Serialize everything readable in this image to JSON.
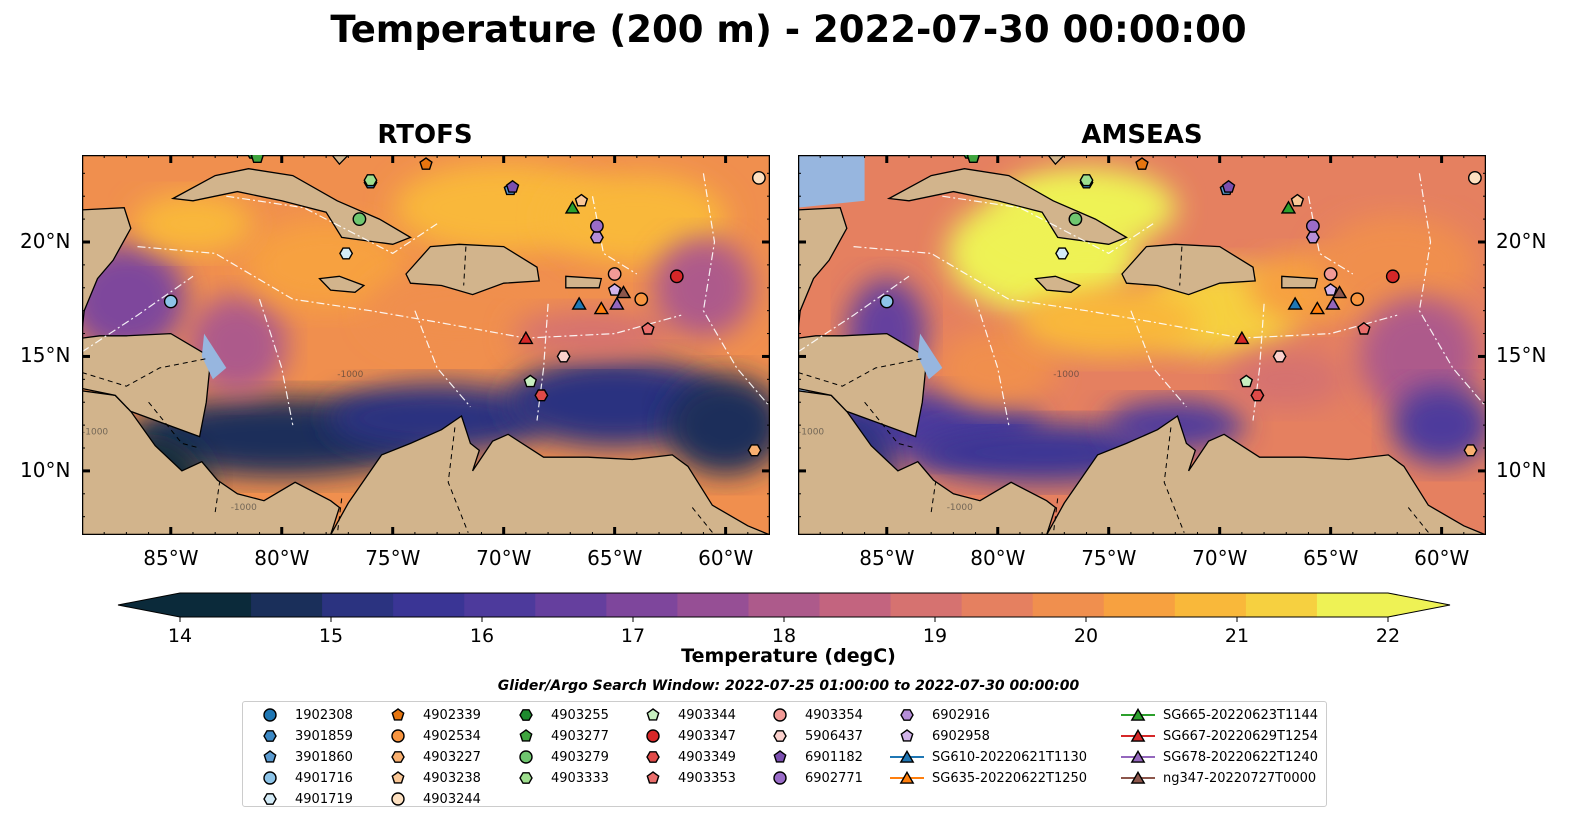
{
  "title": "Temperature (200 m) - 2022-07-30 00:00:00",
  "panels": [
    {
      "title": "RTOFS",
      "palette": "warm"
    },
    {
      "title": "AMSEAS",
      "palette": "hot"
    }
  ],
  "axes": {
    "lon_ticks": [
      "85°W",
      "80°W",
      "75°W",
      "70°W",
      "65°W",
      "60°W"
    ],
    "lon_values": [
      -85,
      -80,
      -75,
      -70,
      -65,
      -60
    ],
    "lat_ticks": [
      "20°N",
      "15°N",
      "10°N"
    ],
    "lat_values": [
      20,
      15,
      10
    ],
    "lon_range": [
      -89,
      -58
    ],
    "lat_range": [
      7.2,
      23.8
    ]
  },
  "contour_label": "-1000",
  "colorbar": {
    "label": "Temperature (degC)",
    "ticks": [
      "14",
      "15",
      "16",
      "17",
      "18",
      "19",
      "20",
      "21",
      "22"
    ],
    "tick_values": [
      14,
      15,
      16,
      17,
      18,
      19,
      20,
      21,
      22
    ],
    "range": [
      14,
      22
    ],
    "extend": "both",
    "colors": [
      "#0b2a3a",
      "#1a2f5a",
      "#2b3380",
      "#3a3595",
      "#4d3a9c",
      "#653f9e",
      "#7e469c",
      "#964f95",
      "#ad5a8b",
      "#c3647f",
      "#d67270",
      "#e58060",
      "#f08f4e",
      "#f7a140",
      "#f9b83a",
      "#f6d040",
      "#eef255"
    ]
  },
  "search_window": "Glider/Argo Search Window: 2022-07-25 01:00:00 to 2022-07-30 00:00:00",
  "legend": [
    {
      "label": "1902308",
      "marker": "circle",
      "color": "#1f77b4"
    },
    {
      "label": "3901859",
      "marker": "hexagon",
      "color": "#3b88c4"
    },
    {
      "label": "3901860",
      "marker": "pentagon",
      "color": "#5b9bd0"
    },
    {
      "label": "4901716",
      "marker": "circle",
      "color": "#8dc4e8"
    },
    {
      "label": "4901719",
      "marker": "hexagon",
      "color": "#d4ecf8"
    },
    {
      "label": "4902339",
      "marker": "pentagon",
      "color": "#e6750f"
    },
    {
      "label": "4902534",
      "marker": "circle",
      "color": "#f89540"
    },
    {
      "label": "4903227",
      "marker": "hexagon",
      "color": "#f9b070"
    },
    {
      "label": "4903238",
      "marker": "pentagon",
      "color": "#fac796"
    },
    {
      "label": "4903244",
      "marker": "circle",
      "color": "#fde0c0"
    },
    {
      "label": "4903255",
      "marker": "hexagon",
      "color": "#1e8a2e"
    },
    {
      "label": "4903277",
      "marker": "pentagon",
      "color": "#3fa53f"
    },
    {
      "label": "4903279",
      "marker": "circle",
      "color": "#6fc66f"
    },
    {
      "label": "4903333",
      "marker": "hexagon",
      "color": "#9ede8e"
    },
    {
      "label": "4903344",
      "marker": "pentagon",
      "color": "#c8f0c0"
    },
    {
      "label": "4903347",
      "marker": "circle",
      "color": "#d62728"
    },
    {
      "label": "4903349",
      "marker": "hexagon",
      "color": "#e04a48"
    },
    {
      "label": "4903353",
      "marker": "pentagon",
      "color": "#ea6e6c"
    },
    {
      "label": "4903354",
      "marker": "circle",
      "color": "#f29a96"
    },
    {
      "label": "5906437",
      "marker": "hexagon",
      "color": "#fad0cc"
    },
    {
      "label": "6901182",
      "marker": "pentagon",
      "color": "#7b4fb0"
    },
    {
      "label": "6902771",
      "marker": "circle",
      "color": "#9a6cc8"
    },
    {
      "label": "6902916",
      "marker": "hexagon",
      "color": "#b58ed8"
    },
    {
      "label": "6902958",
      "marker": "pentagon",
      "color": "#d2b4ea"
    },
    {
      "label": "SG610-20220621T1130",
      "marker": "triangle",
      "color": "#1f77b4",
      "line": true
    },
    {
      "label": "SG635-20220622T1250",
      "marker": "triangle",
      "color": "#ff7f0e",
      "line": true
    },
    {
      "label": "SG665-20220623T1144",
      "marker": "triangle",
      "color": "#2ca02c",
      "line": true
    },
    {
      "label": "SG667-20220629T1254",
      "marker": "triangle",
      "color": "#d62728",
      "line": true
    },
    {
      "label": "SG678-20220622T1240",
      "marker": "triangle",
      "color": "#9467bd",
      "line": true
    },
    {
      "label": "ng347-20220727T0000",
      "marker": "triangle",
      "color": "#8c564b",
      "line": true
    }
  ],
  "observations": [
    {
      "id": "1902308",
      "lon": -81.2,
      "lat": 23.9
    },
    {
      "id": "3901859",
      "lon": -76.0,
      "lat": 22.6
    },
    {
      "id": "3901860",
      "lon": -69.7,
      "lat": 22.3
    },
    {
      "id": "4901716",
      "lon": -85.0,
      "lat": 17.4
    },
    {
      "id": "4901719",
      "lon": -77.1,
      "lat": 19.5
    },
    {
      "id": "4902339",
      "lon": -73.5,
      "lat": 23.4
    },
    {
      "id": "4902534",
      "lon": -63.8,
      "lat": 17.5
    },
    {
      "id": "4903227",
      "lon": -58.7,
      "lat": 10.9
    },
    {
      "id": "4903238",
      "lon": -66.5,
      "lat": 21.8
    },
    {
      "id": "4903244",
      "lon": -58.5,
      "lat": 22.8
    },
    {
      "id": "4903255",
      "lon": -81.3,
      "lat": 23.9
    },
    {
      "id": "4903277",
      "lon": -81.1,
      "lat": 23.7
    },
    {
      "id": "4903279",
      "lon": -76.5,
      "lat": 21.0
    },
    {
      "id": "4903333",
      "lon": -76.0,
      "lat": 22.7
    },
    {
      "id": "4903344",
      "lon": -68.8,
      "lat": 13.9
    },
    {
      "id": "4903347",
      "lon": -62.2,
      "lat": 18.5
    },
    {
      "id": "4903349",
      "lon": -68.3,
      "lat": 13.3
    },
    {
      "id": "4903353",
      "lon": -63.5,
      "lat": 16.2
    },
    {
      "id": "4903354",
      "lon": -65.0,
      "lat": 18.6
    },
    {
      "id": "5906437",
      "lon": -67.3,
      "lat": 15.0
    },
    {
      "id": "6901182",
      "lon": -69.6,
      "lat": 22.4
    },
    {
      "id": "6902771",
      "lon": -65.8,
      "lat": 20.7
    },
    {
      "id": "6902916",
      "lon": -65.8,
      "lat": 20.2
    },
    {
      "id": "6902958",
      "lon": -65.0,
      "lat": 17.9
    },
    {
      "id": "SG610-20220621T1130",
      "lon": -66.6,
      "lat": 17.3
    },
    {
      "id": "SG635-20220622T1250",
      "lon": -65.6,
      "lat": 17.1
    },
    {
      "id": "SG665-20220623T1144",
      "lon": -66.9,
      "lat": 21.5
    },
    {
      "id": "SG667-20220629T1254",
      "lon": -69.0,
      "lat": 15.8
    },
    {
      "id": "SG678-20220622T1240",
      "lon": -64.9,
      "lat": 17.3
    },
    {
      "id": "ng347-20220727T0000",
      "lon": -64.6,
      "lat": 17.8
    }
  ]
}
